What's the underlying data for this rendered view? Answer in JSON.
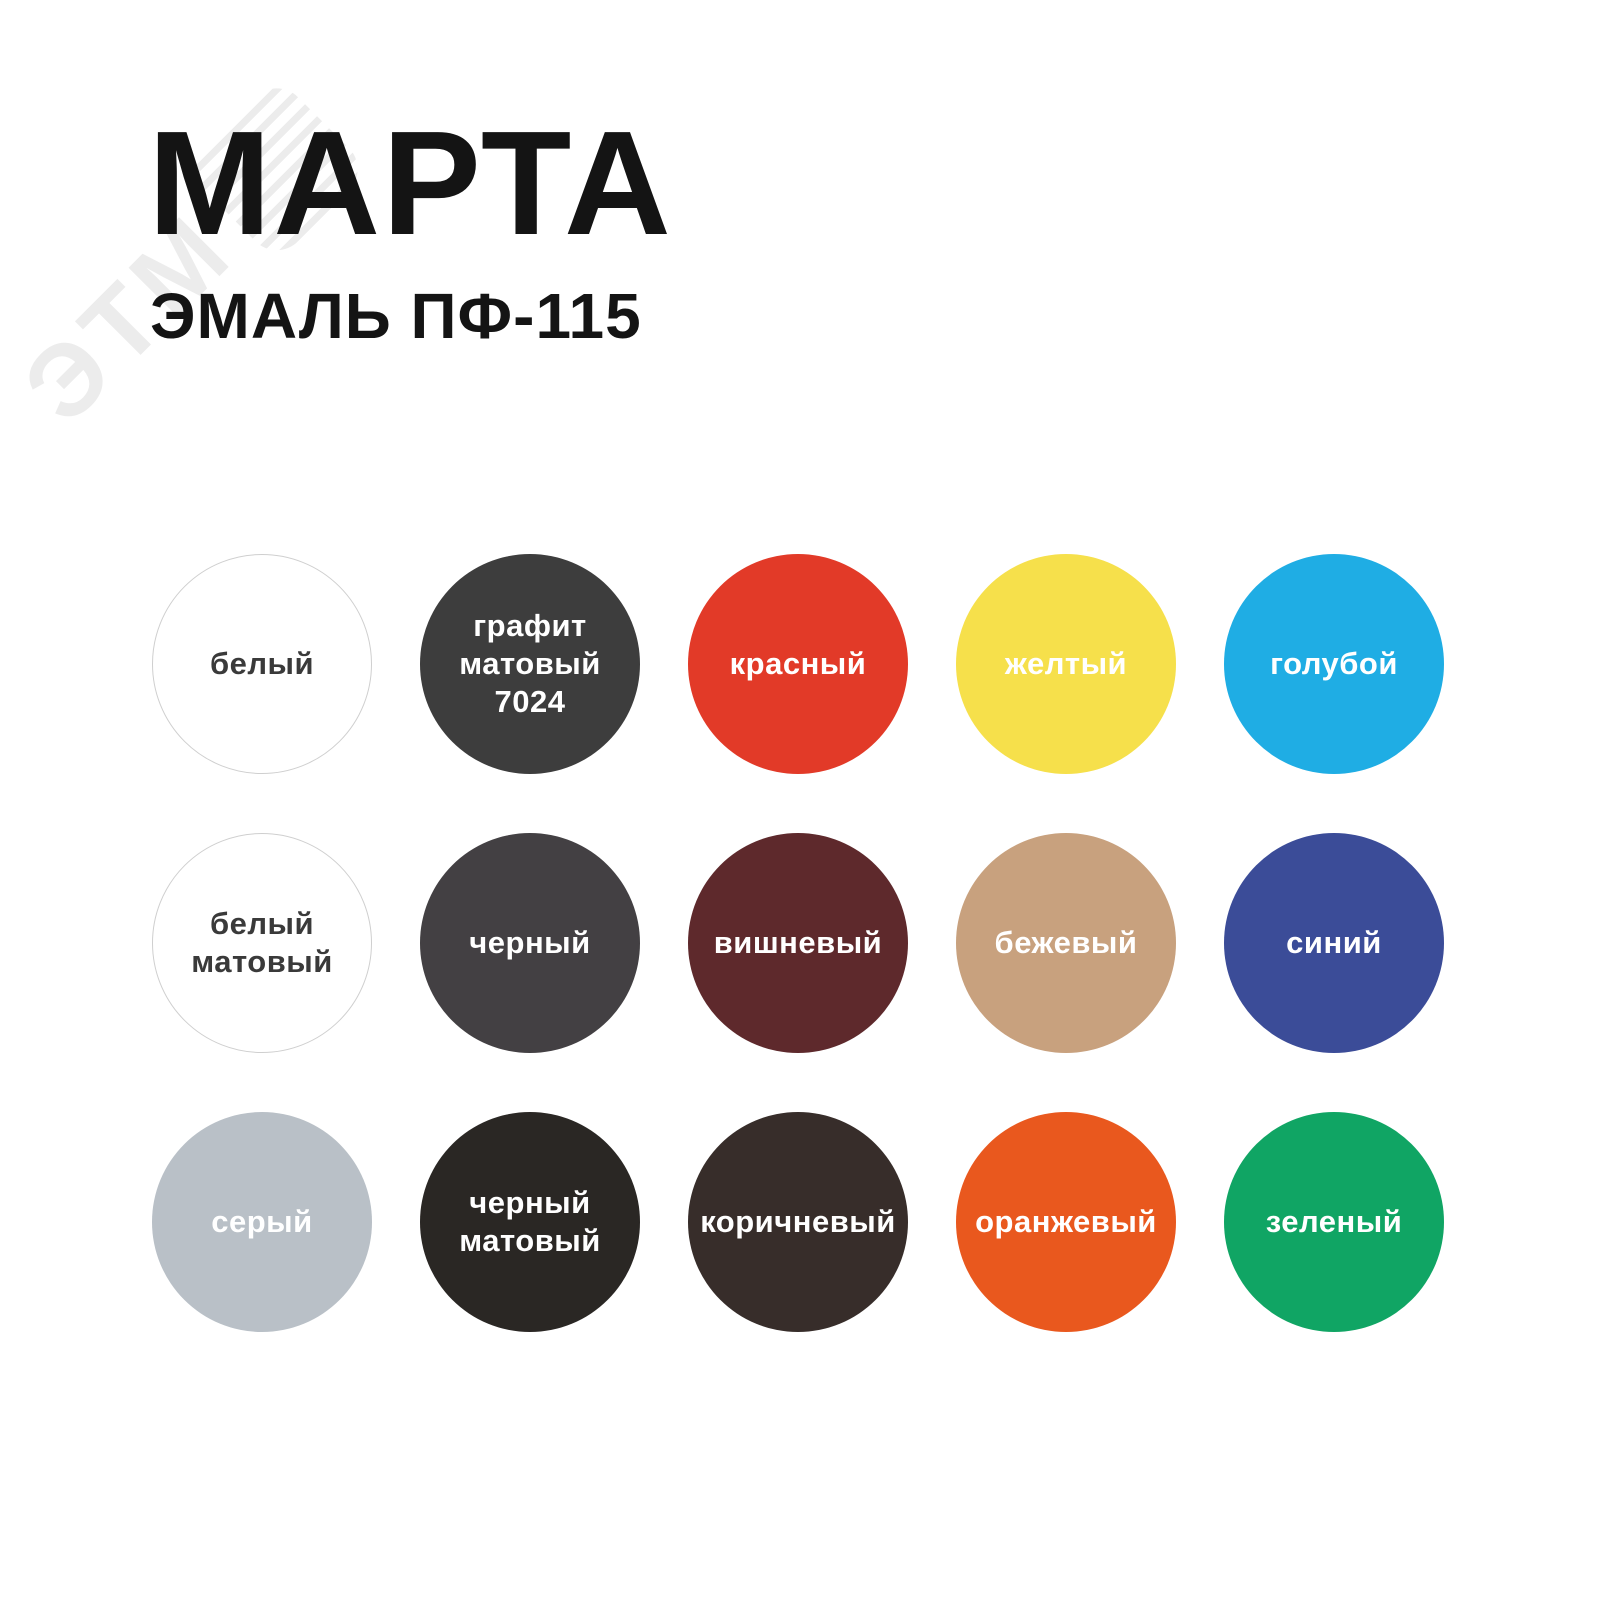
{
  "watermark": {
    "text": "ЭТМ",
    "color": "#ececec"
  },
  "header": {
    "brand": "МАРТА",
    "product": "ЭМАЛЬ ПФ-115",
    "text_color": "#141414"
  },
  "background": "#ffffff",
  "swatches": [
    {
      "name": "white",
      "label": "белый",
      "color": "#ffffff",
      "text_color": "#3a3a3a",
      "border": "#cfcfcf"
    },
    {
      "name": "graphite-matte-7024",
      "label": "графит\nматовый\n7024",
      "color": "#3d3d3d",
      "text_color": "#ffffff"
    },
    {
      "name": "red",
      "label": "красный",
      "color": "#e23a28",
      "text_color": "#ffffff"
    },
    {
      "name": "yellow",
      "label": "желтый",
      "color": "#f6e04b",
      "text_color": "#ffffff"
    },
    {
      "name": "light-blue",
      "label": "голубой",
      "color": "#1fade4",
      "text_color": "#ffffff"
    },
    {
      "name": "white-matte",
      "label": "белый\nматовый",
      "color": "#ffffff",
      "text_color": "#3a3a3a",
      "border": "#cfcfcf"
    },
    {
      "name": "black",
      "label": "черный",
      "color": "#434043",
      "text_color": "#ffffff"
    },
    {
      "name": "cherry",
      "label": "вишневый",
      "color": "#5e292c",
      "text_color": "#ffffff"
    },
    {
      "name": "beige",
      "label": "бежевый",
      "color": "#c8a17e",
      "text_color": "#ffffff"
    },
    {
      "name": "blue",
      "label": "синий",
      "color": "#3b4c98",
      "text_color": "#ffffff"
    },
    {
      "name": "gray",
      "label": "серый",
      "color": "#b9c0c7",
      "text_color": "#ffffff"
    },
    {
      "name": "black-matte",
      "label": "черный\nматовый",
      "color": "#2a2724",
      "text_color": "#ffffff"
    },
    {
      "name": "brown",
      "label": "коричневый",
      "color": "#372d2a",
      "text_color": "#ffffff"
    },
    {
      "name": "orange",
      "label": "оранжевый",
      "color": "#e9581e",
      "text_color": "#ffffff"
    },
    {
      "name": "green",
      "label": "зеленый",
      "color": "#10a564",
      "text_color": "#ffffff"
    }
  ]
}
